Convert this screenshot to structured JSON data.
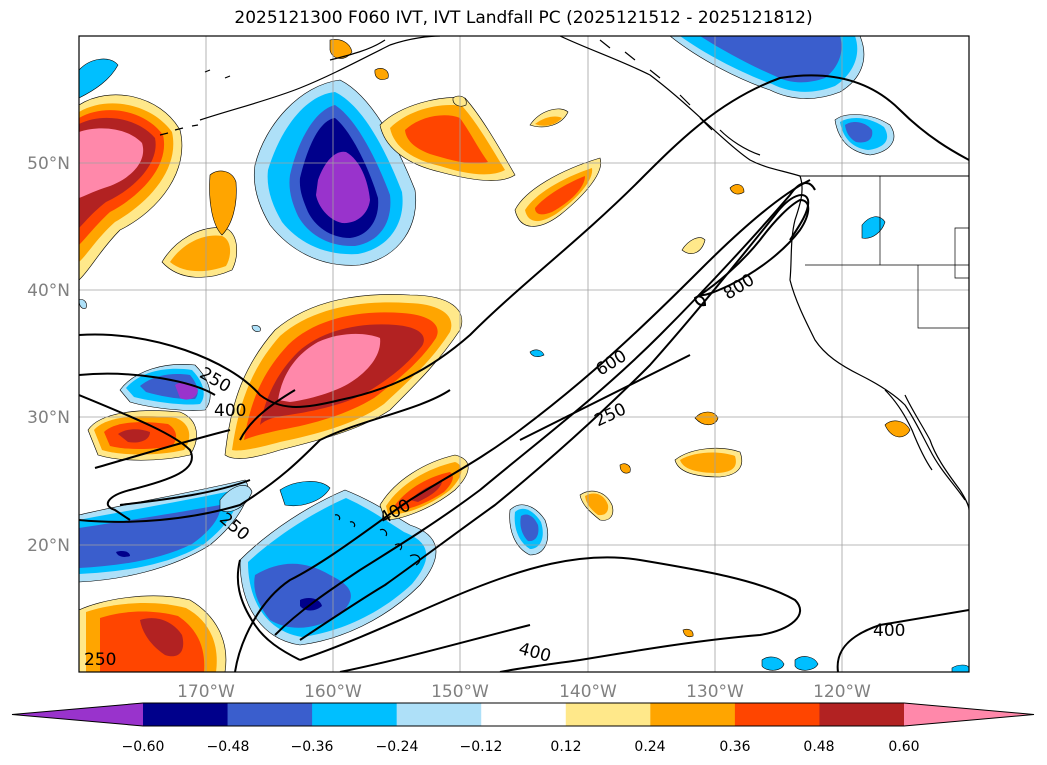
{
  "title": "2025121300 F060 IVT, IVT Landfall PC (2025121512 - 2025121812)",
  "map": {
    "projection": "PlateCarree",
    "lon_range": [
      -180,
      -110
    ],
    "lat_range": [
      10,
      60
    ],
    "lat_labels": [
      "50°N",
      "40°N",
      "30°N",
      "20°N"
    ],
    "lon_labels": [
      "170°W",
      "160°W",
      "150°W",
      "140°W",
      "130°W",
      "120°W"
    ],
    "gridlines": true
  },
  "contour_labels": [
    "250",
    "400",
    "600",
    "800",
    "250",
    "400",
    "250",
    "400",
    "400",
    "250"
  ],
  "colorbar": {
    "orientation": "horizontal",
    "extend": "both",
    "ticks": [
      "−0.60",
      "−0.48",
      "−0.36",
      "−0.24",
      "−0.12",
      "0.12",
      "0.24",
      "0.36",
      "0.48",
      "0.60"
    ],
    "colors": [
      "#9933cc",
      "#00008b",
      "#3a5ecd",
      "#00bfff",
      "#aee0f8",
      "#ffffff",
      "#ffe88a",
      "#ffa500",
      "#ff4500",
      "#b22222",
      "#ff88aa"
    ]
  }
}
